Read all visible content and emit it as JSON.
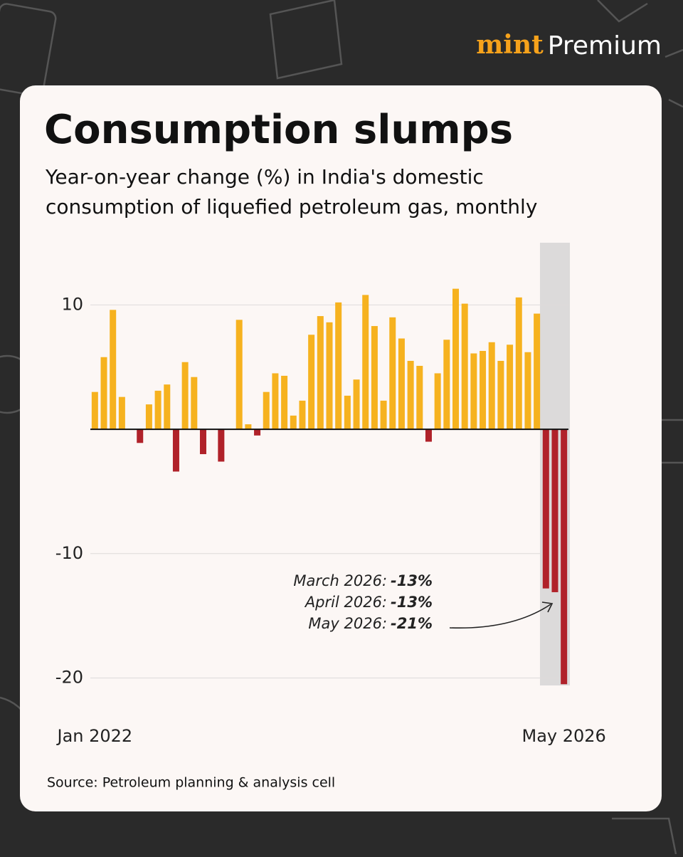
{
  "brand": {
    "name": "mint",
    "tier": "Premium"
  },
  "chart_data": {
    "type": "bar",
    "title": "Consumption slumps",
    "subtitle": [
      "Year-on-year change (%) in India's domestic",
      "consumption of liquefied petroleum gas, monthly"
    ],
    "categories": [
      "Jan 2022",
      null,
      null,
      null,
      null,
      null,
      null,
      null,
      null,
      null,
      null,
      null,
      null,
      null,
      null,
      null,
      null,
      null,
      null,
      null,
      null,
      null,
      null,
      null,
      null,
      null,
      null,
      null,
      null,
      null,
      null,
      null,
      null,
      null,
      null,
      null,
      null,
      null,
      null,
      null,
      null,
      null,
      null,
      null,
      null,
      null,
      null,
      null,
      null,
      null,
      null,
      null,
      "May 2026"
    ],
    "values": [
      3.0,
      5.8,
      9.6,
      2.6,
      0,
      -1.1,
      2.0,
      3.1,
      3.6,
      -3.4,
      5.4,
      4.2,
      -2.0,
      0,
      -2.6,
      0,
      8.8,
      0.4,
      -0.5,
      3.0,
      4.5,
      4.3,
      1.1,
      2.3,
      7.6,
      9.1,
      8.6,
      10.2,
      2.7,
      4.0,
      10.8,
      8.3,
      2.3,
      9.0,
      7.3,
      5.5,
      5.1,
      -1.0,
      4.5,
      7.2,
      11.3,
      10.1,
      6.1,
      6.3,
      7.0,
      5.5,
      6.8,
      10.6,
      6.2,
      9.3,
      -12.8,
      -13.1,
      -20.5
    ],
    "colors": {
      "positive": "#f6b21f",
      "negative": "#b0222a",
      "highlight": "#dcdada"
    },
    "ylim": [
      -20.6,
      15
    ],
    "yticks": [
      -20,
      -10,
      10
    ],
    "grid": true,
    "annotations": [
      {
        "label": "March 2026:",
        "value_label": "-13%"
      },
      {
        "label": "April 2026:",
        "value_label": "-13%"
      },
      {
        "label": "May 2026:",
        "value_label": "-21%"
      }
    ],
    "source": "Source: Petroleum planning & analysis cell"
  }
}
